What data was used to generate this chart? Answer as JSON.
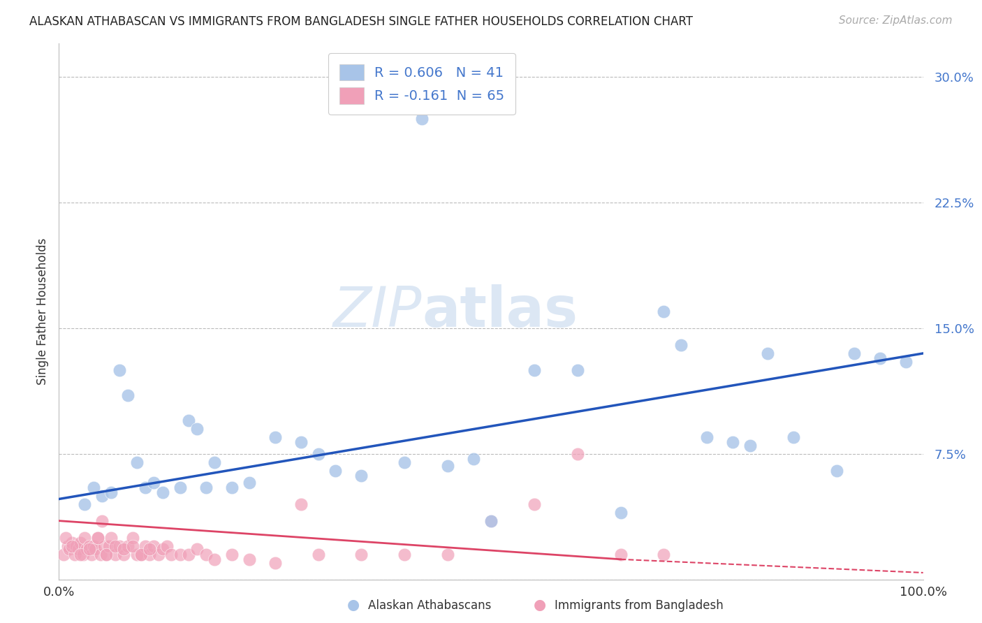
{
  "title": "ALASKAN ATHABASCAN VS IMMIGRANTS FROM BANGLADESH SINGLE FATHER HOUSEHOLDS CORRELATION CHART",
  "source": "Source: ZipAtlas.com",
  "ylabel": "Single Father Households",
  "watermark_part1": "ZIP",
  "watermark_part2": "atlas",
  "blue_R": 0.606,
  "blue_N": 41,
  "pink_R": -0.161,
  "pink_N": 65,
  "blue_color": "#a8c4e8",
  "pink_color": "#f0a0b8",
  "blue_line_color": "#2255bb",
  "pink_line_color": "#dd4466",
  "background_color": "#ffffff",
  "grid_color": "#bbbbbb",
  "legend_text_color": "#4477cc",
  "axis_text_color": "#4477cc",
  "xlim": [
    0,
    100
  ],
  "ylim": [
    0,
    32
  ],
  "yticks": [
    0,
    7.5,
    15.0,
    22.5,
    30.0
  ],
  "ytick_labels": [
    "",
    "7.5%",
    "15.0%",
    "22.5%",
    "30.0%"
  ],
  "blue_line_x0": 0,
  "blue_line_y0": 4.8,
  "blue_line_x1": 100,
  "blue_line_y1": 13.5,
  "pink_line_x0": 0,
  "pink_line_y0": 3.5,
  "pink_line_x1": 65,
  "pink_line_y1": 1.2,
  "pink_line_dash_x0": 65,
  "pink_line_dash_y0": 1.2,
  "pink_line_dash_x1": 100,
  "pink_line_dash_y1": 0.4,
  "blue_scatter_x": [
    3,
    5,
    7,
    8,
    10,
    12,
    14,
    15,
    16,
    18,
    20,
    22,
    25,
    28,
    30,
    32,
    35,
    40,
    45,
    48,
    50,
    55,
    60,
    65,
    70,
    72,
    75,
    78,
    80,
    82,
    85,
    90,
    92,
    95,
    98,
    4,
    6,
    9,
    11,
    17,
    42
  ],
  "blue_scatter_y": [
    4.5,
    5.0,
    12.5,
    11.0,
    5.5,
    5.2,
    5.5,
    9.5,
    9.0,
    7.0,
    5.5,
    5.8,
    8.5,
    8.2,
    7.5,
    6.5,
    6.2,
    7.0,
    6.8,
    7.2,
    3.5,
    12.5,
    12.5,
    4.0,
    16.0,
    14.0,
    8.5,
    8.2,
    8.0,
    13.5,
    8.5,
    6.5,
    13.5,
    13.2,
    13.0,
    5.5,
    5.2,
    7.0,
    5.8,
    5.5,
    27.5
  ],
  "pink_scatter_x": [
    0.5,
    1,
    1.2,
    1.5,
    1.8,
    2,
    2.2,
    2.5,
    2.8,
    3,
    3.2,
    3.5,
    3.8,
    4,
    4.2,
    4.5,
    4.8,
    5,
    5.2,
    5.5,
    5.8,
    6,
    6.5,
    7,
    7.5,
    8,
    8.5,
    9,
    9.5,
    10,
    10.5,
    11,
    11.5,
    12,
    12.5,
    13,
    14,
    15,
    16,
    17,
    18,
    20,
    22,
    25,
    28,
    30,
    35,
    40,
    45,
    50,
    55,
    60,
    65,
    70,
    0.8,
    1.5,
    2.5,
    3.5,
    4.5,
    5.5,
    6.5,
    7.5,
    8.5,
    9.5,
    10.5
  ],
  "pink_scatter_y": [
    1.5,
    2.0,
    1.8,
    2.2,
    1.5,
    2.0,
    1.8,
    2.2,
    1.5,
    2.5,
    1.8,
    2.0,
    1.5,
    2.0,
    1.8,
    2.5,
    1.5,
    3.5,
    2.0,
    1.5,
    2.0,
    2.5,
    1.5,
    2.0,
    1.5,
    2.0,
    2.5,
    1.5,
    1.5,
    2.0,
    1.5,
    2.0,
    1.5,
    1.8,
    2.0,
    1.5,
    1.5,
    1.5,
    1.8,
    1.5,
    1.2,
    1.5,
    1.2,
    1.0,
    4.5,
    1.5,
    1.5,
    1.5,
    1.5,
    3.5,
    4.5,
    7.5,
    1.5,
    1.5,
    2.5,
    2.0,
    1.5,
    1.8,
    2.5,
    1.5,
    2.0,
    1.8,
    2.0,
    1.5,
    1.8
  ]
}
